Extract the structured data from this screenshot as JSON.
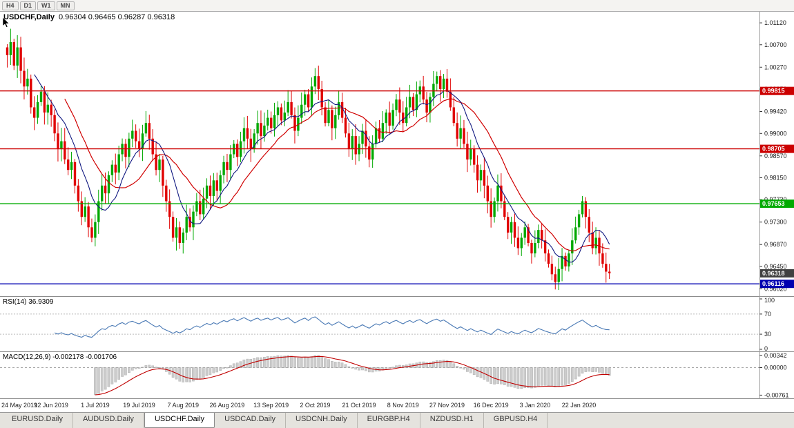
{
  "toolbar": {
    "timeframes": [
      "H4",
      "D1",
      "W1",
      "MN"
    ]
  },
  "chart": {
    "symbol": "USDCHF,Daily",
    "ohlc": "0.96304 0.96465 0.96287 0.96318"
  },
  "price_axis": {
    "ticks": [
      {
        "label": "1.01120",
        "v": 1.0112
      },
      {
        "label": "1.00700",
        "v": 1.007
      },
      {
        "label": "1.00270",
        "v": 1.0027
      },
      {
        "label": "0.99850",
        "v": 0.9985
      },
      {
        "label": "0.99420",
        "v": 0.9942
      },
      {
        "label": "0.99000",
        "v": 0.99
      },
      {
        "label": "0.98570",
        "v": 0.9857
      },
      {
        "label": "0.98150",
        "v": 0.9815
      },
      {
        "label": "0.97730",
        "v": 0.9773
      },
      {
        "label": "0.97300",
        "v": 0.973
      },
      {
        "label": "0.96870",
        "v": 0.9687
      },
      {
        "label": "0.96450",
        "v": 0.9645
      },
      {
        "label": "0.96020",
        "v": 0.9602
      }
    ],
    "levels": [
      {
        "label": "0.99815",
        "v": 0.99815,
        "color": "#cc0000"
      },
      {
        "label": "0.98705",
        "v": 0.98705,
        "color": "#cc0000"
      },
      {
        "label": "0.97653",
        "v": 0.97653,
        "color": "#00aa00"
      },
      {
        "label": "0.96116",
        "v": 0.96116,
        "color": "#0000b0"
      }
    ],
    "current": {
      "label": "0.96318",
      "v": 0.96318
    }
  },
  "rsi": {
    "label": "RSI(14) 36.9309",
    "ticks": [
      {
        "label": "100",
        "v": 100
      },
      {
        "label": "70",
        "v": 70,
        "dashed": true
      },
      {
        "label": "30",
        "v": 30,
        "dashed": true
      },
      {
        "label": "0",
        "v": 0
      }
    ]
  },
  "macd": {
    "label": "MACD(12,26,9) -0.002178 -0.001706",
    "ticks": [
      {
        "label": "0.00342",
        "v": 0.00342
      },
      {
        "label": "0.00000",
        "v": 0
      },
      {
        "label": "-0.00761",
        "v": -0.00761
      }
    ]
  },
  "dates": [
    "24 May 2019",
    "12 Jun 2019",
    "1 Jul 2019",
    "19 Jul 2019",
    "7 Aug 2019",
    "26 Aug 2019",
    "13 Sep 2019",
    "2 Oct 2019",
    "21 Oct 2019",
    "8 Nov 2019",
    "27 Nov 2019",
    "16 Dec 2019",
    "3 Jan 2020",
    "22 Jan 2020"
  ],
  "tabs": [
    {
      "label": "EURUSD.Daily",
      "active": false
    },
    {
      "label": "AUDUSD.Daily",
      "active": false
    },
    {
      "label": "USDCHF.Daily",
      "active": true
    },
    {
      "label": "USDCAD.Daily",
      "active": false
    },
    {
      "label": "USDCNH.Daily",
      "active": false
    },
    {
      "label": "EURGBP.H4",
      "active": false
    },
    {
      "label": "NZDUSD.H1",
      "active": false
    },
    {
      "label": "GBPUSD.H4",
      "active": false
    }
  ],
  "colors": {
    "candle_up": "#00a800",
    "candle_down": "#e00000",
    "ma_red": "#d00000",
    "ma_navy": "#101880",
    "rsi_line": "#4878b4",
    "macd_hist": "#cccccc",
    "macd_hist_border": "#b0b0b0",
    "macd_signal": "#c00000",
    "current_badge": "#404040"
  },
  "chart_data": {
    "type": "candlestick",
    "symbol": "USDCHF",
    "timeframe": "Daily",
    "title": "USDCHF,Daily",
    "ohlc_current": {
      "open": 0.96304,
      "high": 0.96465,
      "low": 0.96287,
      "close": 0.96318
    },
    "y_range": [
      0.9592,
      1.0128
    ],
    "bars_per_date_label": 13,
    "horizontal_levels": [
      0.99815,
      0.98705,
      0.97653,
      0.96116
    ],
    "indicators": {
      "rsi_period": 14,
      "rsi_value": 36.9309,
      "macd_params": "12,26,9",
      "macd_value": -0.002178,
      "macd_signal_value": -0.001706
    },
    "closes": [
      1.005,
      1.0075,
      1.003,
      1.0065,
      1.002,
      0.999,
      1.0005,
      0.995,
      0.993,
      0.996,
      0.998,
      0.994,
      0.9955,
      0.9935,
      0.99,
      0.987,
      0.9885,
      0.985,
      0.983,
      0.9845,
      0.98,
      0.977,
      0.974,
      0.976,
      0.972,
      0.97,
      0.973,
      0.977,
      0.98,
      0.9785,
      0.982,
      0.984,
      0.9825,
      0.986,
      0.988,
      0.9855,
      0.989,
      0.9905,
      0.9885,
      0.987,
      0.99,
      0.992,
      0.989,
      0.986,
      0.983,
      0.985,
      0.98,
      0.977,
      0.974,
      0.97,
      0.972,
      0.969,
      0.971,
      0.974,
      0.972,
      0.975,
      0.977,
      0.9745,
      0.9775,
      0.98,
      0.978,
      0.981,
      0.979,
      0.982,
      0.9845,
      0.983,
      0.986,
      0.988,
      0.9855,
      0.9885,
      0.991,
      0.989,
      0.987,
      0.99,
      0.992,
      0.9895,
      0.9915,
      0.993,
      0.991,
      0.9935,
      0.995,
      0.9925,
      0.994,
      0.996,
      0.9935,
      0.9905,
      0.993,
      0.9955,
      0.9975,
      0.995,
      0.999,
      1.001,
      0.9985,
      0.995,
      0.992,
      0.9945,
      0.991,
      0.9935,
      0.996,
      0.993,
      0.99,
      0.987,
      0.9895,
      0.986,
      0.988,
      0.9905,
      0.9875,
      0.985,
      0.988,
      0.991,
      0.989,
      0.992,
      0.994,
      0.9915,
      0.9945,
      0.9965,
      0.994,
      0.992,
      0.995,
      0.997,
      0.9945,
      0.9975,
      0.999,
      0.9965,
      0.994,
      0.997,
      0.9995,
      1.001,
      0.9985,
      1.0005,
      0.998,
      0.995,
      0.992,
      0.989,
      0.991,
      0.988,
      0.985,
      0.987,
      0.984,
      0.981,
      0.983,
      0.98,
      0.977,
      0.974,
      0.977,
      0.98,
      0.977,
      0.974,
      0.971,
      0.973,
      0.97,
      0.968,
      0.97,
      0.972,
      0.969,
      0.967,
      0.969,
      0.9715,
      0.9695,
      0.967,
      0.965,
      0.963,
      0.9615,
      0.964,
      0.9665,
      0.9645,
      0.967,
      0.9695,
      0.972,
      0.9745,
      0.977,
      0.974,
      0.971,
      0.968,
      0.97,
      0.967,
      0.965,
      0.9635,
      0.96318
    ]
  }
}
